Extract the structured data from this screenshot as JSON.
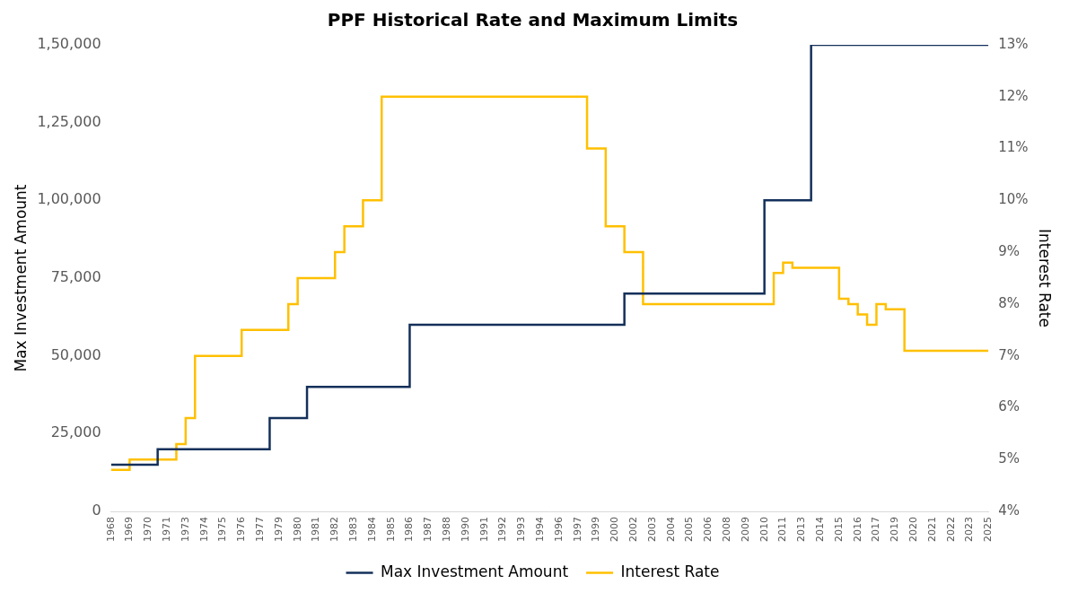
{
  "chart_data": {
    "type": "line",
    "title": "PPF Historical Rate and Maximum Limits",
    "y_label": "Max Investment Amount",
    "y2_label": "Interest Rate",
    "categories": [
      "1968",
      null,
      "1969",
      null,
      "1970",
      null,
      "1971",
      null,
      "1973",
      null,
      "1974",
      null,
      "1975",
      null,
      "1976",
      null,
      "1977",
      null,
      "1979",
      null,
      "1980",
      null,
      "1981",
      null,
      "1982",
      null,
      "1983",
      null,
      "1984",
      null,
      "1985",
      null,
      "1986",
      null,
      "1987",
      null,
      "1988",
      null,
      "1990",
      null,
      "1991",
      null,
      "1992",
      null,
      "1993",
      null,
      "1994",
      null,
      "1996",
      null,
      "1997",
      null,
      "1999",
      null,
      "2000",
      null,
      "2002",
      null,
      "2003",
      null,
      "2004",
      null,
      "2005",
      null,
      "2006",
      null,
      "2008",
      null,
      "2009",
      null,
      "2010",
      null,
      "2011",
      null,
      "2013",
      null,
      "2014",
      null,
      "2015",
      null,
      "2016",
      null,
      "2017",
      null,
      "2019",
      null,
      "2020",
      null,
      "2021",
      null,
      "2022",
      null,
      "2023",
      null,
      "2025"
    ],
    "series": [
      {
        "name": "Max Investment Amount",
        "color": "#14305a",
        "axis": "y",
        "line_style": "step",
        "values": [
          15000,
          15000,
          15000,
          15000,
          15000,
          15000,
          20000,
          20000,
          20000,
          20000,
          20000,
          20000,
          20000,
          20000,
          20000,
          20000,
          20000,
          20000,
          30000,
          30000,
          30000,
          30000,
          40000,
          40000,
          40000,
          40000,
          40000,
          40000,
          40000,
          40000,
          40000,
          40000,
          40000,
          60000,
          60000,
          60000,
          60000,
          60000,
          60000,
          60000,
          60000,
          60000,
          60000,
          60000,
          60000,
          60000,
          60000,
          60000,
          60000,
          60000,
          60000,
          60000,
          60000,
          60000,
          60000,
          60000,
          70000,
          70000,
          70000,
          70000,
          70000,
          70000,
          70000,
          70000,
          70000,
          70000,
          70000,
          70000,
          70000,
          70000,
          70000,
          100000,
          100000,
          100000,
          100000,
          100000,
          150000,
          150000,
          150000,
          150000,
          150000,
          150000,
          150000,
          150000,
          150000,
          150000,
          150000,
          150000,
          150000,
          150000,
          150000,
          150000,
          150000,
          150000,
          150000
        ]
      },
      {
        "name": "Interest Rate",
        "color": "#ffc000",
        "axis": "y2",
        "line_style": "step",
        "values": [
          4.8,
          4.8,
          4.8,
          5.0,
          5.0,
          5.0,
          5.0,
          5.0,
          5.3,
          5.8,
          7.0,
          7.0,
          7.0,
          7.0,
          7.0,
          7.5,
          7.5,
          7.5,
          7.5,
          7.5,
          8.0,
          8.5,
          8.5,
          8.5,
          8.5,
          9.0,
          9.5,
          9.5,
          10,
          10,
          12,
          12,
          12,
          12,
          12,
          12,
          12,
          12,
          12,
          12,
          12,
          12,
          12,
          12,
          12,
          12,
          12,
          12,
          12,
          12,
          12,
          12,
          11,
          11,
          9.5,
          9.5,
          9.0,
          9.0,
          8.0,
          8.0,
          8.0,
          8.0,
          8.0,
          8.0,
          8.0,
          8.0,
          8.0,
          8.0,
          8.0,
          8.0,
          8.0,
          8.0,
          8.6,
          8.8,
          8.7,
          8.7,
          8.7,
          8.7,
          8.7,
          8.1,
          8.0,
          7.8,
          7.6,
          8.0,
          7.9,
          7.9,
          7.1,
          7.1,
          7.1,
          7.1,
          7.1,
          7.1,
          7.1,
          7.1,
          7.1
        ]
      }
    ],
    "ylim": [
      0,
      150000
    ],
    "yticks": [
      0,
      {
        "value": 25000,
        "label": "25,000"
      },
      {
        "value": 50000,
        "label": "50,000"
      },
      {
        "value": 75000,
        "label": "75,000"
      },
      {
        "value": 100000,
        "label": "1,00,000"
      },
      {
        "value": 125000,
        "label": "1,25,000"
      },
      {
        "value": 150000,
        "label": "1,50,000"
      }
    ],
    "y2lim": [
      4,
      13
    ],
    "y2ticks": [
      {
        "value": 4,
        "label": "4%"
      },
      {
        "value": 5,
        "label": "5%"
      },
      {
        "value": 6,
        "label": "6%"
      },
      {
        "value": 7,
        "label": "7%"
      },
      {
        "value": 8,
        "label": "8%"
      },
      {
        "value": 9,
        "label": "9%"
      },
      {
        "value": 10,
        "label": "10%"
      },
      {
        "value": 11,
        "label": "11%"
      },
      {
        "value": 12,
        "label": "12%"
      },
      {
        "value": 13,
        "label": "13%"
      }
    ],
    "grid": false,
    "legend": "bottom"
  }
}
